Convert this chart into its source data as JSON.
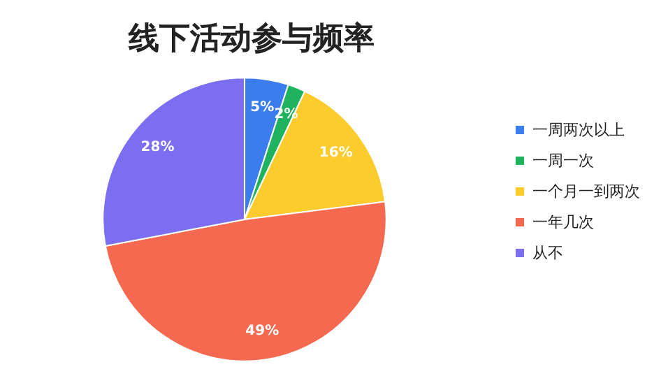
{
  "chart_data": {
    "type": "pie",
    "title": "线下活动参与频率",
    "categories": [
      "一周两次以上",
      "一周一次",
      "一个月一到两次",
      "一年几次",
      "从不"
    ],
    "values": [
      5,
      2,
      16,
      49,
      28
    ],
    "colors": [
      "#3b7ded",
      "#1fb35f",
      "#fccb2c",
      "#f4694f",
      "#7b6ef0"
    ],
    "value_labels": [
      "5%",
      "2%",
      "16%",
      "49%",
      "28%"
    ],
    "legend": "right"
  }
}
